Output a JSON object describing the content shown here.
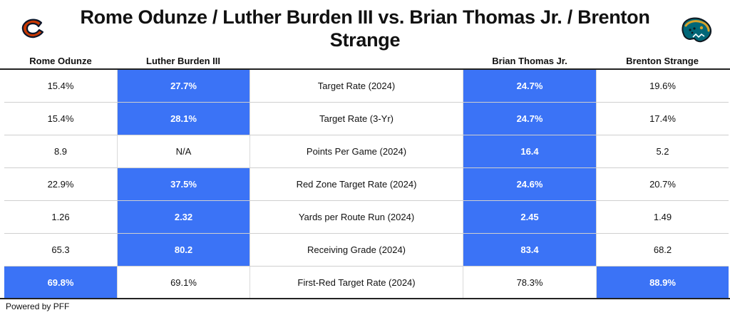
{
  "header": {
    "title": "Rome Odunze / Luther Burden III vs. Brian Thomas Jr. / Brenton Strange",
    "left_logo": "bears-c-logo-icon",
    "right_logo": "jaguars-logo-icon"
  },
  "columns": [
    "Rome Odunze",
    "Luther Burden III",
    "",
    "Brian Thomas Jr.",
    "Brenton Strange"
  ],
  "rows": [
    {
      "metric": "Target Rate (2024)",
      "values": [
        "15.4%",
        "27.7%",
        "24.7%",
        "19.6%"
      ],
      "highlight": [
        false,
        true,
        true,
        false
      ]
    },
    {
      "metric": "Target Rate (3-Yr)",
      "values": [
        "15.4%",
        "28.1%",
        "24.7%",
        "17.4%"
      ],
      "highlight": [
        false,
        true,
        true,
        false
      ]
    },
    {
      "metric": "Points Per Game (2024)",
      "values": [
        "8.9",
        "N/A",
        "16.4",
        "5.2"
      ],
      "highlight": [
        false,
        false,
        true,
        false
      ]
    },
    {
      "metric": "Red Zone Target Rate (2024)",
      "values": [
        "22.9%",
        "37.5%",
        "24.6%",
        "20.7%"
      ],
      "highlight": [
        false,
        true,
        true,
        false
      ]
    },
    {
      "metric": "Yards per Route Run (2024)",
      "values": [
        "1.26",
        "2.32",
        "2.45",
        "1.49"
      ],
      "highlight": [
        false,
        true,
        true,
        false
      ]
    },
    {
      "metric": "Receiving Grade (2024)",
      "values": [
        "65.3",
        "80.2",
        "83.4",
        "68.2"
      ],
      "highlight": [
        false,
        true,
        true,
        false
      ]
    },
    {
      "metric": "First-Red Target Rate (2024)",
      "values": [
        "69.8%",
        "69.1%",
        "78.3%",
        "88.9%"
      ],
      "highlight": [
        true,
        false,
        false,
        true
      ]
    }
  ],
  "footer": {
    "text": "Powered by PFF"
  },
  "colors": {
    "highlight": "#3b73f6",
    "bears_navy": "#0b162a",
    "bears_orange": "#c83803",
    "jaguars_teal": "#006778",
    "jaguars_gold": "#d7a22a"
  }
}
